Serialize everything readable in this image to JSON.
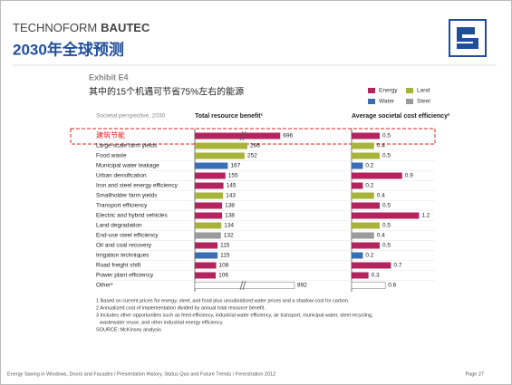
{
  "header": {
    "brand_light": "TECHNOFORM",
    "brand_bold": "BAUTEC",
    "title": "2030年全球预测"
  },
  "chart_data": {
    "type": "bar",
    "exhibit": "Exhibit E4",
    "title": "其中的15个机遇可节省75%左右的能源",
    "perspective": "Societal perspective, 2030",
    "categories": [
      "建筑节能",
      "Large-scale farm yields",
      "Food waste",
      "Municipal water leakage",
      "Urban densification",
      "Iron and steel energy efficiency",
      "Smallholder farm yields",
      "Transport efficiency",
      "Electric and hybrid vehicles",
      "Land degradation",
      "End-use steel efficiency",
      "Oil and coal recovery",
      "Irrigation techniques",
      "Road freight shift",
      "Power plant efficiency",
      "Other³"
    ],
    "bar_colors": [
      "#b3245e",
      "#a8b33a",
      "#a8b33a",
      "#3b6db4",
      "#b3245e",
      "#b3245e",
      "#a8b33a",
      "#b3245e",
      "#b3245e",
      "#a8b33a",
      "#9b9b9b",
      "#b3245e",
      "#3b6db4",
      "#b3245e",
      "#b3245e",
      "#ffffff"
    ],
    "series": [
      {
        "name": "Total resource benefit¹",
        "values": [
          696,
          266,
          252,
          167,
          155,
          145,
          143,
          138,
          138,
          134,
          132,
          115,
          115,
          108,
          106,
          892
        ]
      },
      {
        "name": "Average societal cost efficiency²",
        "values": [
          0.5,
          0.4,
          0.5,
          0.2,
          0.9,
          0.2,
          0.4,
          0.5,
          1.2,
          0.5,
          0.4,
          0.5,
          0.2,
          0.7,
          0.3,
          0.6
        ]
      }
    ],
    "legend": [
      {
        "name": "Energy",
        "color": "#b3245e"
      },
      {
        "name": "Land",
        "color": "#a8b33a"
      },
      {
        "name": "Water",
        "color": "#3b6db4"
      },
      {
        "name": "Steel",
        "color": "#9b9b9b"
      }
    ],
    "notes": [
      "1 Based on current prices for energy, steel, and food plus unsubsidized water prices and a shadow cost for carbon.",
      "2 Annualized cost of implementation divided by annual total resource benefit.",
      "3 Includes other opportunities such as feed efficiency, industrial water efficiency, air transport, municipal water, steel recycling,",
      "wastewater reuse, and other industrial energy efficiency.",
      "SOURCE: McKinsey analysis"
    ]
  },
  "footer": {
    "text": "Energy Saving in Windows, Doors and Facades  / Presentation History, Status Quo and Future Trends / Fenestration 2012",
    "page": "Page 27"
  }
}
